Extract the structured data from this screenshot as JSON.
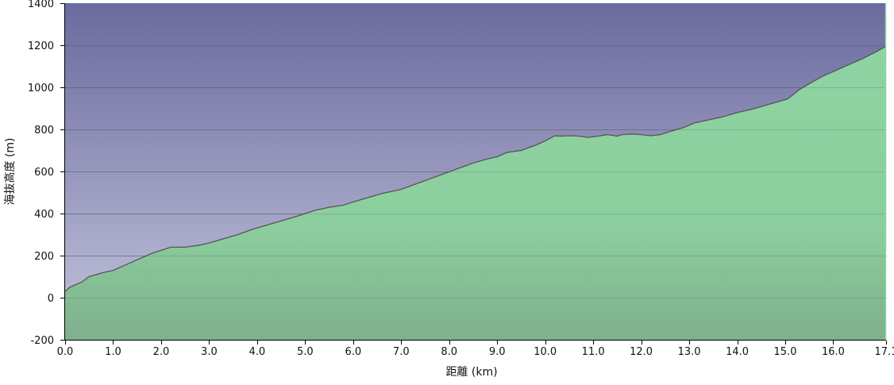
{
  "chart_data": {
    "type": "area",
    "xlabel": "距離 (km)",
    "ylabel": "海抜高度 (m)",
    "xlim": [
      0,
      17.1
    ],
    "ylim": [
      -200,
      1400
    ],
    "x_ticks": [
      "0.0",
      "1.0",
      "2.0",
      "3.0",
      "4.0",
      "5.0",
      "6.0",
      "7.0",
      "8.0",
      "9.0",
      "10.0",
      "11.0",
      "12.0",
      "13.0",
      "14.0",
      "15.0",
      "16.0",
      "17.1"
    ],
    "y_ticks": [
      "-200",
      "0",
      "200",
      "400",
      "600",
      "800",
      "1000",
      "1200",
      "1400"
    ],
    "grid": "horizontal",
    "colors": {
      "sky_top": "#6a6a9e",
      "sky_bottom": "#c4c4dd",
      "fill_top": "#8fd3a2",
      "fill_bottom": "#7fb08d",
      "line": "#555555"
    },
    "series": [
      {
        "x": [
          0.0,
          0.1,
          0.2,
          0.35,
          0.5,
          0.8,
          1.0,
          1.2,
          1.5,
          1.8,
          2.0,
          2.2,
          2.5,
          2.8,
          3.0,
          3.3,
          3.6,
          3.9,
          4.2,
          4.5,
          4.8,
          5.0,
          5.2,
          5.5,
          5.8,
          6.0,
          6.3,
          6.6,
          6.9,
          7.0,
          7.3,
          7.6,
          7.9,
          8.2,
          8.5,
          8.8,
          9.0,
          9.2,
          9.5,
          9.8,
          10.0,
          10.2,
          10.3,
          10.5,
          10.7,
          10.9,
          11.1,
          11.3,
          11.5,
          11.6,
          11.8,
          12.0,
          12.2,
          12.4,
          12.6,
          12.9,
          13.1,
          13.4,
          13.7,
          14.0,
          14.3,
          14.6,
          14.9,
          15.05,
          15.3,
          15.6,
          15.8,
          16.0,
          16.3,
          16.6,
          16.9,
          17.1
        ],
        "y": [
          30,
          50,
          60,
          75,
          100,
          120,
          130,
          150,
          180,
          210,
          225,
          240,
          240,
          250,
          260,
          280,
          300,
          325,
          345,
          365,
          385,
          400,
          415,
          430,
          440,
          455,
          475,
          495,
          510,
          515,
          540,
          565,
          590,
          615,
          640,
          660,
          670,
          690,
          700,
          725,
          745,
          770,
          768,
          770,
          768,
          762,
          768,
          775,
          768,
          775,
          778,
          775,
          770,
          775,
          790,
          810,
          830,
          845,
          860,
          880,
          895,
          915,
          935,
          945,
          990,
          1030,
          1055,
          1075,
          1105,
          1135,
          1170,
          1195
        ]
      }
    ]
  }
}
